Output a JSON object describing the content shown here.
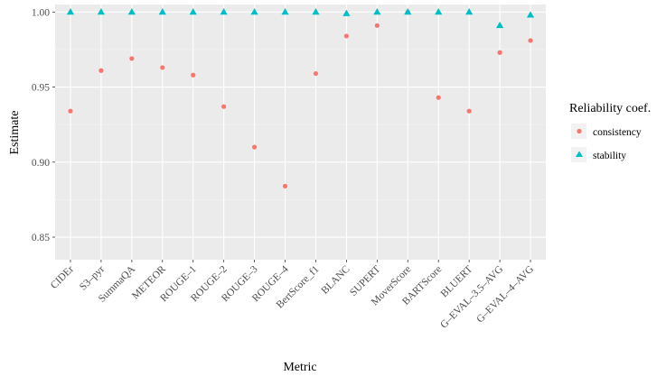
{
  "chart_data": {
    "type": "scatter",
    "xlabel": "Metric",
    "ylabel": "Estimate",
    "ylim": [
      0.835,
      1.005
    ],
    "yticks": [
      0.85,
      0.9,
      0.95,
      1.0
    ],
    "ytick_labels": [
      "0.85",
      "0.90",
      "0.95",
      "1.00"
    ],
    "grid": true,
    "legend": {
      "title": "Reliability coef.",
      "placement": "right"
    },
    "categories": [
      "CIDEr",
      "S3–pyr",
      "SummaQA",
      "METEOR",
      "ROUGE–1",
      "ROUGE–2",
      "ROUGE–3",
      "ROUGE–4",
      "BertScore_f1",
      "BLANC",
      "SUPERT",
      "MoverScore",
      "BARTScore",
      "BLUERT",
      "G–EVAL–3.5–AVG",
      "G–EVAL–4–AVG"
    ],
    "series": [
      {
        "name": "consistency",
        "marker": "circle",
        "color": "#F8766D",
        "values": [
          0.934,
          0.961,
          0.969,
          0.963,
          0.958,
          0.937,
          0.91,
          0.884,
          0.959,
          0.984,
          0.991,
          1.0,
          0.943,
          0.934,
          0.973,
          0.981
        ]
      },
      {
        "name": "stability",
        "marker": "triangle",
        "color": "#00BFC4",
        "values": [
          1.0,
          1.0,
          1.0,
          1.0,
          1.0,
          1.0,
          1.0,
          1.0,
          1.0,
          0.999,
          1.0,
          1.0,
          1.0,
          1.0,
          0.991,
          0.998
        ]
      }
    ]
  }
}
